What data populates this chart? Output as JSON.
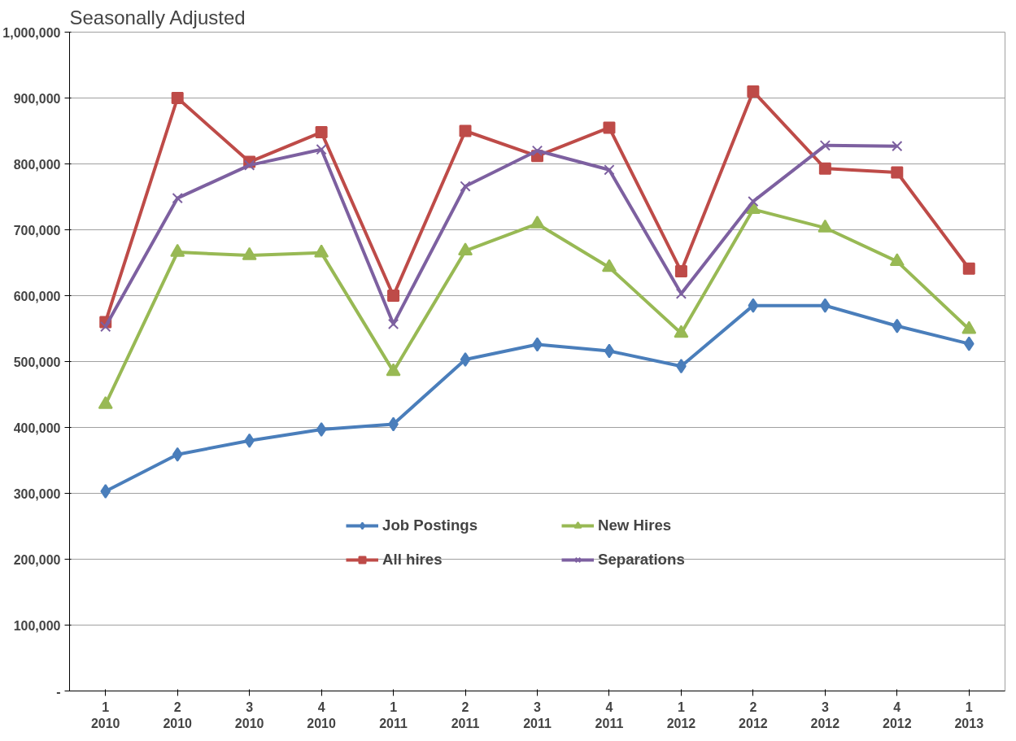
{
  "chart_data": {
    "type": "line",
    "title": "Seasonally Adjusted",
    "categories": [
      "1\n2010",
      "2\n2010",
      "3\n2010",
      "4\n2010",
      "1\n2011",
      "2\n2011",
      "3\n2011",
      "4\n2011",
      "1\n2012",
      "2\n2012",
      "3\n2012",
      "4\n2012",
      "1\n2013"
    ],
    "series": [
      {
        "name": "Job Postings",
        "color": "#4a7ebb",
        "marker": "diamond",
        "values": [
          303000,
          359000,
          380000,
          397000,
          405000,
          503000,
          526000,
          516000,
          493000,
          585000,
          585000,
          554000,
          527000
        ]
      },
      {
        "name": "All hires",
        "color": "#be4b48",
        "marker": "square",
        "values": [
          560000,
          900000,
          803000,
          848000,
          600000,
          850000,
          812000,
          855000,
          637000,
          910000,
          793000,
          787000,
          641000
        ]
      },
      {
        "name": "New Hires",
        "color": "#98b954",
        "marker": "triangle",
        "values": [
          435000,
          666000,
          661000,
          665000,
          485000,
          668000,
          709000,
          643000,
          543000,
          731000,
          703000,
          652000,
          549000
        ]
      },
      {
        "name": "Separations",
        "color": "#7d60a0",
        "marker": "cross",
        "values": [
          553000,
          748000,
          798000,
          822000,
          557000,
          766000,
          820000,
          791000,
          603000,
          743000,
          828000,
          827000,
          null
        ]
      }
    ],
    "ylim": [
      0,
      1000000
    ],
    "yticks": [
      {
        "value": 0,
        "label": "-"
      },
      {
        "value": 100000,
        "label": "100,000"
      },
      {
        "value": 200000,
        "label": "200,000"
      },
      {
        "value": 300000,
        "label": "300,000"
      },
      {
        "value": 400000,
        "label": "400,000"
      },
      {
        "value": 500000,
        "label": "500,000"
      },
      {
        "value": 600000,
        "label": "600,000"
      },
      {
        "value": 700000,
        "label": "700,000"
      },
      {
        "value": 800000,
        "label": "800,000"
      },
      {
        "value": 900000,
        "label": "900,000"
      },
      {
        "value": 1000000,
        "label": "1,000,000"
      }
    ],
    "grid": "y",
    "legend": "bottom",
    "line_style": "solid"
  }
}
